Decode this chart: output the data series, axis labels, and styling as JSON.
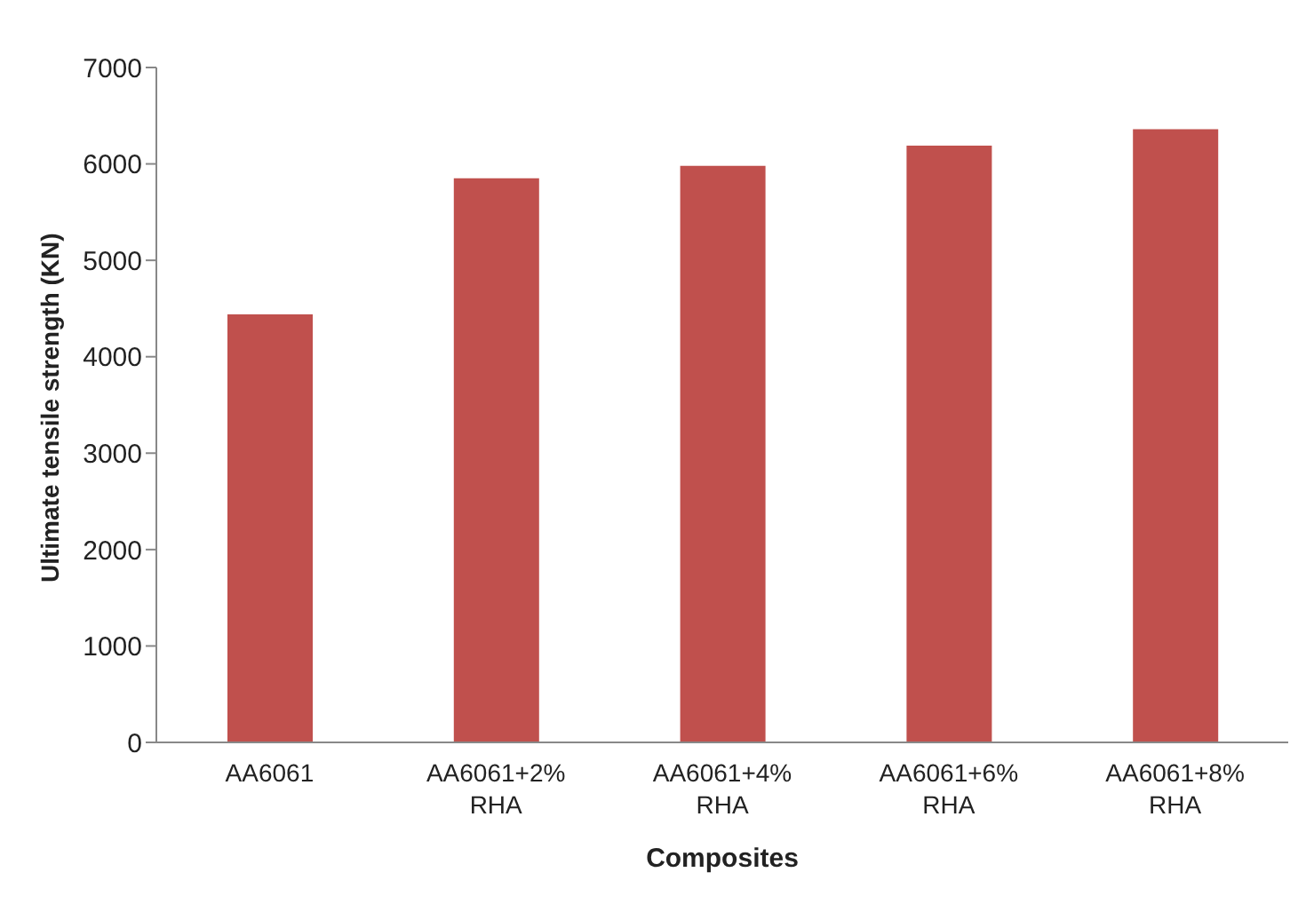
{
  "chart_data": {
    "type": "bar",
    "xlabel": "Composites",
    "ylabel": "Ultimate tensile strength (KN)",
    "categories": [
      "AA6061",
      "AA6061+2% RHA",
      "AA6061+4% RHA",
      "AA6061+6% RHA",
      "AA6061+8% RHA"
    ],
    "values": [
      4440,
      5850,
      5980,
      6190,
      6360
    ],
    "color": "#c0504d",
    "ylim": [
      0,
      7000
    ],
    "yticks": [
      0,
      1000,
      2000,
      3000,
      4000,
      5000,
      6000,
      7000
    ],
    "grid": false,
    "legend": false
  }
}
